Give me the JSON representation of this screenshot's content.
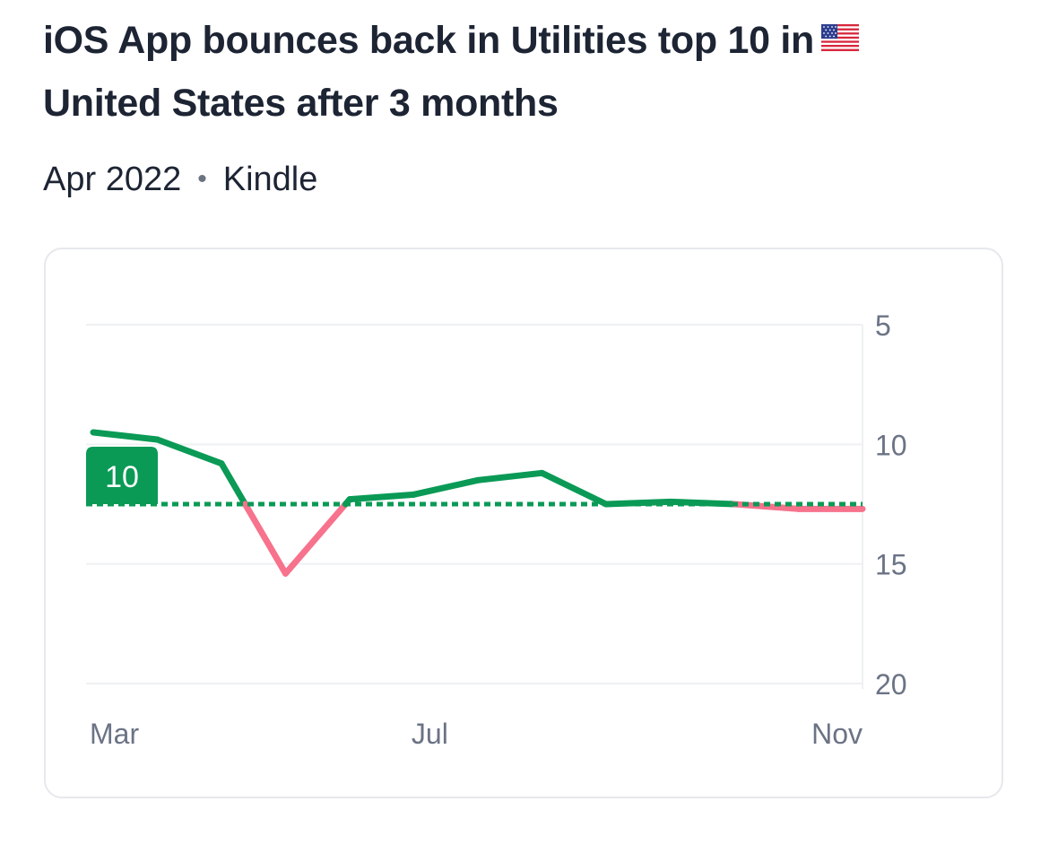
{
  "title": "iOS App bounces back in Utilities top 10 in",
  "flag_icon": "us-flag-icon",
  "subtitle": {
    "date": "Apr 2022",
    "separator": "•",
    "app": "Kindle"
  },
  "colors": {
    "good": "#0a9a56",
    "bad": "#f7728c",
    "grid": "#eef0f2",
    "axis_text": "#6b7385"
  },
  "chart_data": {
    "type": "line",
    "title": "iOS App bounces back in Utilities top 10 in United States after 3 months",
    "subtitle": "Apr 2022 • Kindle",
    "x": [
      0,
      0.6,
      1.2,
      1.8,
      2.4,
      3.0,
      3.6,
      4.2,
      4.8,
      5.4,
      6.0,
      6.6,
      7.2
    ],
    "x_tick_labels": [
      {
        "x": 0,
        "label": "Mar"
      },
      {
        "x": 3.15,
        "label": "Jul"
      },
      {
        "x": 6.5,
        "label": "Nov"
      }
    ],
    "series": [
      {
        "values": [
          9.5,
          9.8,
          10.8,
          15.4,
          12.3,
          12.1,
          11.5,
          11.2,
          12.5,
          12.4,
          12.5,
          12.7,
          12.7
        ]
      }
    ],
    "reference_line": {
      "value": 12.5,
      "label": "10"
    },
    "ylim": [
      20,
      5
    ],
    "y_ticks": [
      5,
      10,
      15,
      20
    ],
    "y_inverted": true,
    "grid": true
  }
}
